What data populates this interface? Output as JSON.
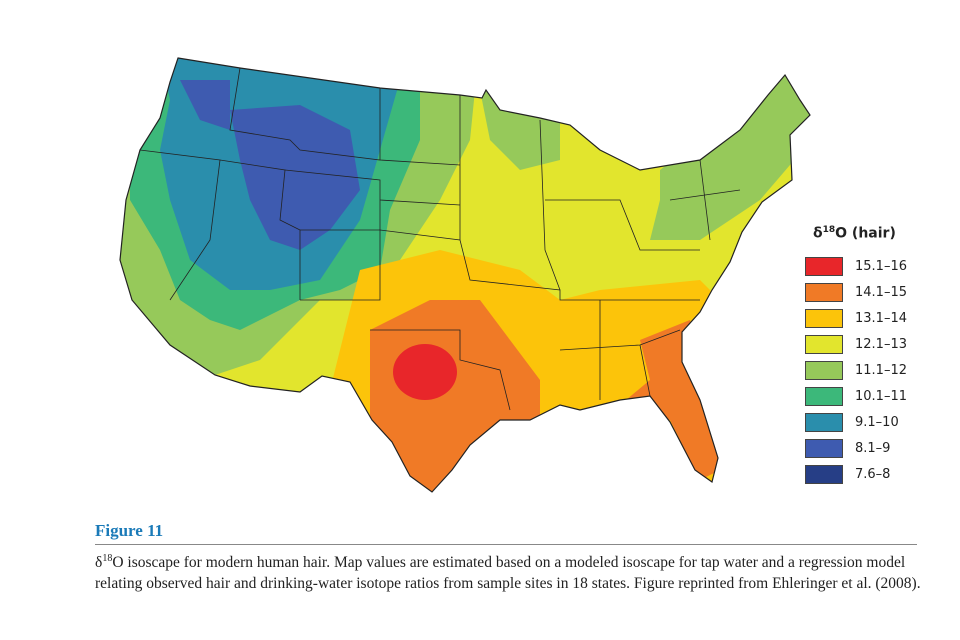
{
  "legend": {
    "title_symbol": "δ",
    "title_sup": "18",
    "title_rest": "O (hair)",
    "items": [
      {
        "label": "15.1–16",
        "color": "#e8262a"
      },
      {
        "label": "14.1–15",
        "color": "#f07a26"
      },
      {
        "label": "13.1–14",
        "color": "#fcc40a"
      },
      {
        "label": "12.1–13",
        "color": "#e2e52d"
      },
      {
        "label": "11.1–12",
        "color": "#96c95a"
      },
      {
        "label": "10.1–11",
        "color": "#3cb87a"
      },
      {
        "label": "9.1–10",
        "color": "#2a8eac"
      },
      {
        "label": "8.1–9",
        "color": "#3e5bb0"
      },
      {
        "label": "7.6–8",
        "color": "#263e86"
      }
    ]
  },
  "figure": {
    "label": "Figure 11",
    "caption_symbol": "δ",
    "caption_sup": "18",
    "caption_text": "O isoscape for modern human hair. Map values are estimated based on a modeled isoscape for tap water and a regression model relating observed hair and drinking-water isotope ratios from sample sites in 18 states. Figure reprinted from Ehleringer et al. (2008)."
  }
}
